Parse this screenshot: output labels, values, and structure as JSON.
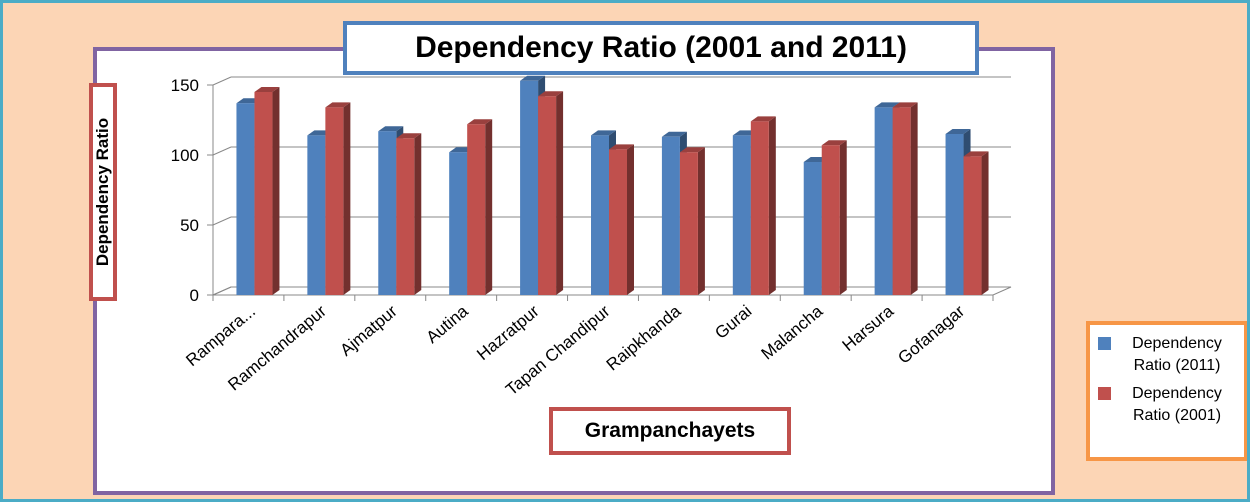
{
  "chart_data": {
    "type": "bar3d",
    "title": "Dependency Ratio (2001 and 2011)",
    "x_label": "Grampanchayets",
    "y_label": "Dependency Ratio",
    "categories": [
      "Rampara...",
      "Ramchandrapur",
      "Ajmatpur",
      "Autina",
      "Hazratpur",
      "Tapan Chandipur",
      "Raipkhanda",
      "Gurai",
      "Malancha",
      "Harsura",
      "Gofanagar"
    ],
    "series": [
      {
        "name": "Dependency Ratio (2011)",
        "color": "#4f81bd",
        "values": [
          137,
          114,
          117,
          102,
          153,
          114,
          113,
          114,
          95,
          134,
          115
        ]
      },
      {
        "name": "Dependency Ratio (2001)",
        "color": "#c0504d",
        "values": [
          145,
          134,
          112,
          122,
          142,
          104,
          102,
          124,
          107,
          134,
          99
        ]
      }
    ],
    "ylim": [
      0,
      150
    ],
    "yticks": [
      0,
      50,
      100,
      150
    ],
    "grid": true,
    "legend": "right"
  }
}
